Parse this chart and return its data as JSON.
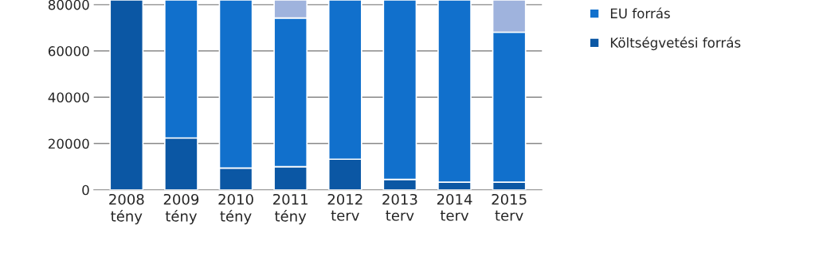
{
  "chart_data": {
    "type": "bar",
    "stacked": true,
    "categories": [
      "2008\ntény",
      "2009\ntény",
      "2010\ntény",
      "2011\ntény",
      "2012\nterv",
      "2013\nterv",
      "2014\nterv",
      "2015\nterv"
    ],
    "series": [
      {
        "name": "Költségvetési forrás",
        "color": "#0b57a4",
        "values": [
          82000,
          22400,
          9400,
          10000,
          13200,
          4500,
          3300,
          3300
        ]
      },
      {
        "name": "EU forrás",
        "color": "#1170cc",
        "values": [
          null,
          59600,
          72600,
          64200,
          68800,
          77500,
          78700,
          64800
        ]
      },
      {
        "color": "#9fb3dd",
        "values": [
          null,
          null,
          null,
          7800,
          null,
          null,
          null,
          13900
        ]
      }
    ],
    "ylim": [
      0,
      82000
    ],
    "yticks": [
      0,
      20000,
      40000,
      60000,
      80000
    ],
    "grid": "y",
    "legend": "right"
  }
}
